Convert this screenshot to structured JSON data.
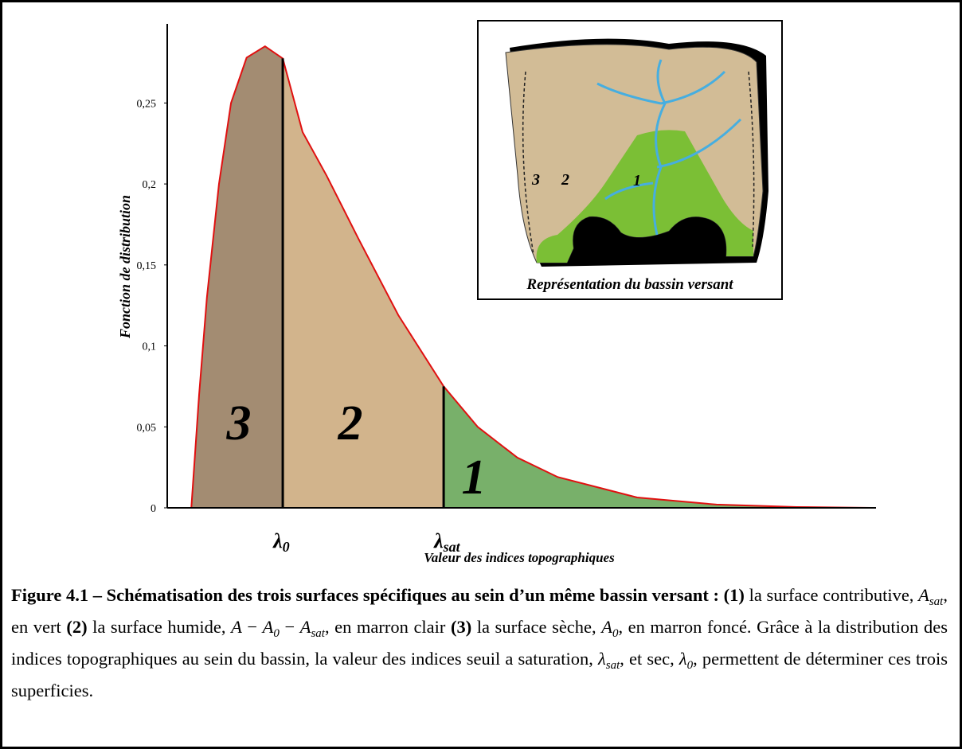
{
  "chart_data": {
    "type": "area",
    "x": [
      0.34,
      0.45,
      0.56,
      0.73,
      0.9,
      1.12,
      1.38,
      1.63,
      1.91,
      2.25,
      2.7,
      3.26,
      3.9,
      4.38,
      4.94,
      5.51,
      6.63,
      7.75,
      8.88,
      9.94
    ],
    "values": [
      0,
      0.07,
      0.13,
      0.2,
      0.25,
      0.278,
      0.285,
      0.2775,
      0.232,
      0.205,
      0.166,
      0.119,
      0.075,
      0.05,
      0.031,
      0.019,
      0.0064,
      0.002,
      0.0005,
      0
    ],
    "color": "#e01010",
    "xlim": [
      0,
      10
    ],
    "ylim": [
      0,
      0.29
    ],
    "yticks": [
      0,
      {
        "value": 0.05,
        "label": "0,05"
      },
      {
        "value": 0.1,
        "label": "0,1"
      },
      {
        "value": 0.15,
        "label": "0,15"
      },
      {
        "value": 0.2,
        "label": "0,2"
      },
      {
        "value": 0.25,
        "label": "0,25"
      }
    ],
    "ylabel": "Fonction de distribution",
    "xlabel": "Valeur des indices topographiques",
    "thresholds": [
      {
        "symbol": "λ",
        "subscript": "0",
        "value": 1.63
      },
      {
        "symbol": "λ",
        "subscript": "sat",
        "value": 3.9
      }
    ],
    "regions": [
      {
        "label": "3",
        "color": "#a38c72"
      },
      {
        "label": "2",
        "color": "#d2b48c"
      },
      {
        "label": "1",
        "color": "#78b06a"
      }
    ]
  },
  "inset": {
    "labels": [
      "3",
      "2",
      "1"
    ],
    "caption": "Représentation du bassin versant"
  },
  "caption": {
    "runs": [
      {
        "t": "Figure 4.1 – Schématisation des trois surfaces spécifiques au sein d’un même bassin versant : ",
        "s": "b"
      },
      {
        "t": "(1)",
        "s": "b"
      },
      {
        "t": " la surface contributive, ",
        "s": "n"
      },
      {
        "t": "A",
        "s": "i"
      },
      {
        "t": "sat",
        "s": "sub"
      },
      {
        "t": ", en vert ",
        "s": "n"
      },
      {
        "t": "(2)",
        "s": "b"
      },
      {
        "t": " la surface humide, ",
        "s": "n"
      },
      {
        "t": "A",
        "s": "i"
      },
      {
        "t": " − ",
        "s": "n"
      },
      {
        "t": "A",
        "s": "i"
      },
      {
        "t": "0",
        "s": "sub"
      },
      {
        "t": " − ",
        "s": "n"
      },
      {
        "t": "A",
        "s": "i"
      },
      {
        "t": "sat",
        "s": "sub"
      },
      {
        "t": ", en marron clair ",
        "s": "n"
      },
      {
        "t": "(3)",
        "s": "b"
      },
      {
        "t": " la surface sèche, ",
        "s": "n"
      },
      {
        "t": "A",
        "s": "i"
      },
      {
        "t": "0",
        "s": "sub"
      },
      {
        "t": ", en marron foncé. Grâce à la distribution des indices topographiques au sein du bassin, la valeur des indices seuil a saturation, ",
        "s": "n"
      },
      {
        "t": "λ",
        "s": "i"
      },
      {
        "t": "sat",
        "s": "sub"
      },
      {
        "t": ", et sec, ",
        "s": "n"
      },
      {
        "t": "λ",
        "s": "i"
      },
      {
        "t": "0",
        "s": "sub"
      },
      {
        "t": ", permettent de déterminer ces trois superficies.",
        "s": "n"
      }
    ]
  }
}
